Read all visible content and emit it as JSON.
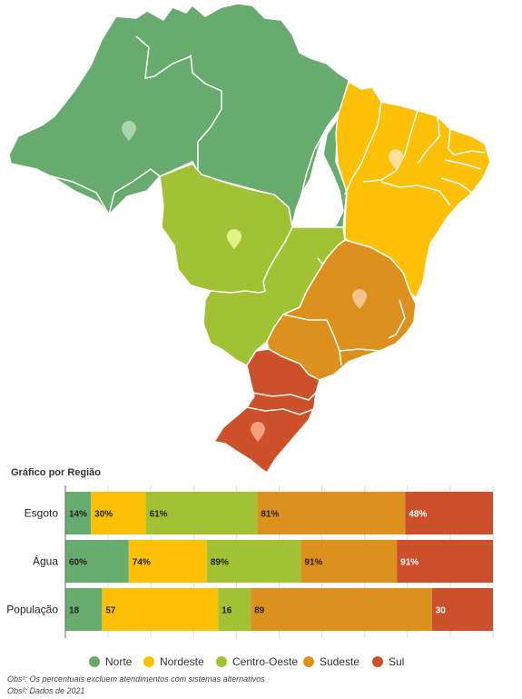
{
  "chart_title": "Gráfico por Região",
  "regions": [
    {
      "name": "Norte",
      "color": "#67ab6e"
    },
    {
      "name": "Nordeste",
      "color": "#fcc006"
    },
    {
      "name": "Centro-Oeste",
      "color": "#a2c236"
    },
    {
      "name": "Sudeste",
      "color": "#dc911e"
    },
    {
      "name": "Sul",
      "color": "#cc512a"
    }
  ],
  "chart_data": {
    "type": "bar",
    "orientation": "horizontal",
    "stacked": true,
    "categories": [
      "Esgoto",
      "Água",
      "População"
    ],
    "series": [
      {
        "name": "Norte",
        "values": [
          14,
          60,
          18
        ],
        "labels": [
          "14%",
          "60%",
          "18"
        ]
      },
      {
        "name": "Nordeste",
        "values": [
          30,
          74,
          57
        ],
        "labels": [
          "30%",
          "74%",
          "57"
        ]
      },
      {
        "name": "Centro-Oeste",
        "values": [
          61,
          89,
          16
        ],
        "labels": [
          "61%",
          "89%",
          "16"
        ]
      },
      {
        "name": "Sudeste",
        "values": [
          81,
          91,
          89
        ],
        "labels": [
          "81%",
          "91%",
          "89"
        ]
      },
      {
        "name": "Sul",
        "values": [
          48,
          91,
          30
        ],
        "labels": [
          "48%",
          "91%",
          "30"
        ]
      }
    ],
    "legend_position": "bottom",
    "grid": true
  },
  "notes": [
    "Obs¹: Os percentuais excluem atendimentos com sistemas alternativos",
    "Obs²: Dados de 2021"
  ]
}
